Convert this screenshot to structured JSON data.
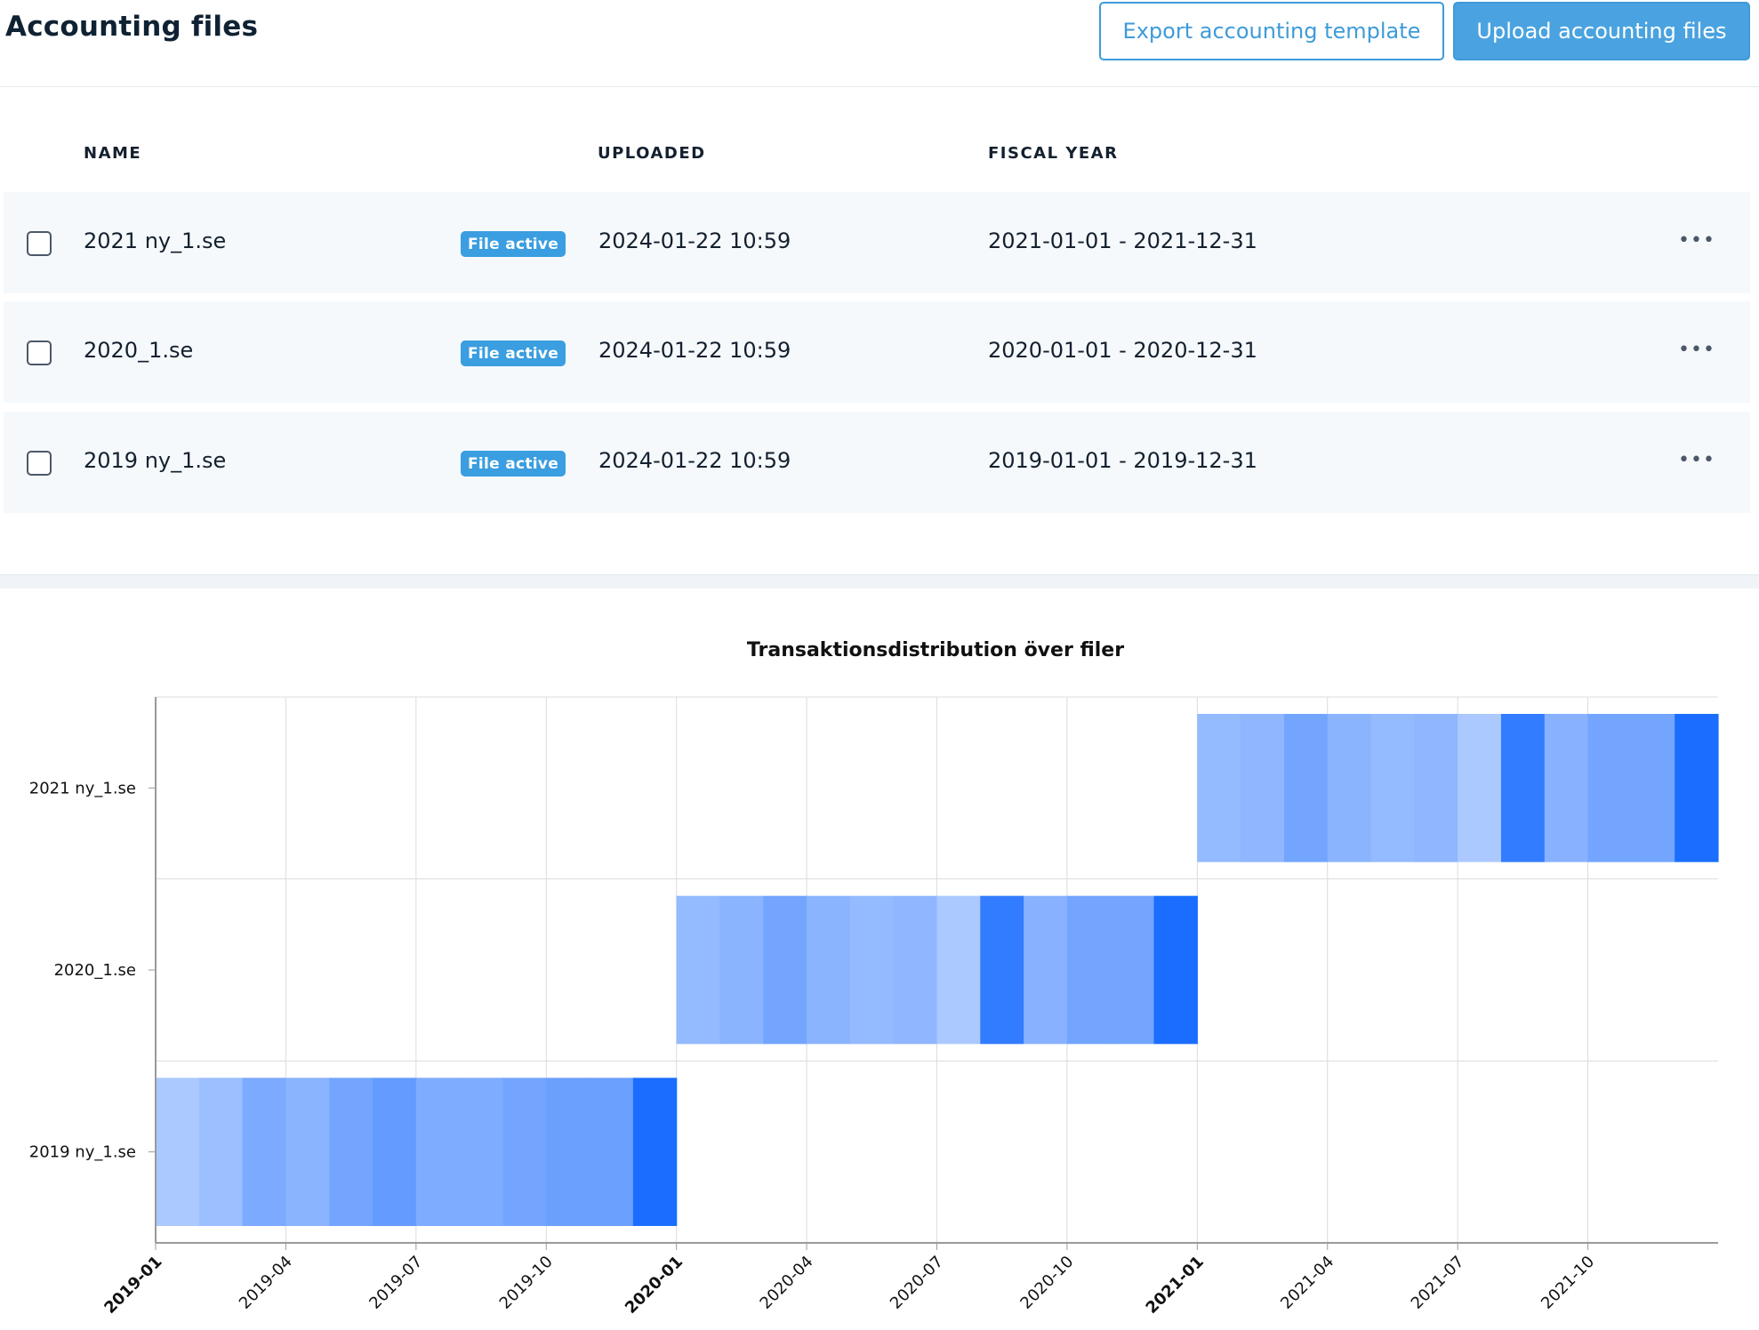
{
  "header": {
    "title": "Accounting files",
    "export_label": "Export accounting template",
    "upload_label": "Upload accounting files"
  },
  "table": {
    "columns": {
      "name": "NAME",
      "uploaded": "UPLOADED",
      "fiscal_year": "FISCAL YEAR"
    },
    "rows": [
      {
        "name": "2021 ny_1.se",
        "badge": "File active",
        "uploaded": "2024-01-22 10:59",
        "fiscal_year": "2021-01-01 - 2021-12-31",
        "more": "•••"
      },
      {
        "name": "2020_1.se",
        "badge": "File active",
        "uploaded": "2024-01-22 10:59",
        "fiscal_year": "2020-01-01 - 2020-12-31",
        "more": "•••"
      },
      {
        "name": "2019 ny_1.se",
        "badge": "File active",
        "uploaded": "2024-01-22 10:59",
        "fiscal_year": "2019-01-01 - 2019-12-31",
        "more": "•••"
      }
    ]
  },
  "colors": {
    "accent": "#3e9bd8",
    "bar_max": "#1a6dff",
    "bar_min": "#bcd3ff"
  },
  "chart_data": {
    "type": "heatmap",
    "title": "Transaktionsdistribution över filer",
    "xlabel": "",
    "ylabel": "",
    "grid": true,
    "x_ticks": [
      "2019-01",
      "2019-04",
      "2019-07",
      "2019-10",
      "2020-01",
      "2020-04",
      "2020-07",
      "2020-10",
      "2021-01",
      "2021-04",
      "2021-07",
      "2021-10"
    ],
    "bold_ticks": [
      "2019-01",
      "2020-01",
      "2021-01"
    ],
    "y_categories": [
      "2021 ny_1.se",
      "2020_1.se",
      "2019 ny_1.se"
    ],
    "series": [
      {
        "file": "2021 ny_1.se",
        "start": "2021-01",
        "intensity": [
          0.25,
          0.28,
          0.45,
          0.3,
          0.25,
          0.28,
          0.1,
          0.85,
          0.32,
          0.45,
          0.45,
          1.0
        ]
      },
      {
        "file": "2020_1.se",
        "start": "2020-01",
        "intensity": [
          0.25,
          0.3,
          0.45,
          0.3,
          0.25,
          0.28,
          0.1,
          0.85,
          0.32,
          0.45,
          0.45,
          1.0
        ]
      },
      {
        "file": "2019 ny_1.se",
        "start": "2019-01",
        "intensity": [
          0.1,
          0.2,
          0.4,
          0.3,
          0.45,
          0.55,
          0.38,
          0.38,
          0.45,
          0.5,
          0.5,
          1.0
        ]
      }
    ]
  }
}
